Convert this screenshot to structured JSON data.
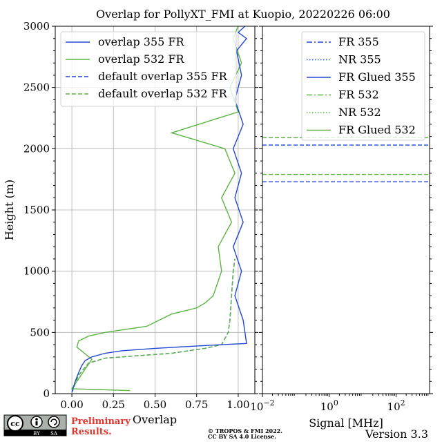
{
  "title": "Overlap for PollyXT_FMI at Kuopio, 20220226 06:00",
  "colors": {
    "blue": "#2047d2",
    "green": "#5ab540"
  },
  "chart_data": [
    {
      "type": "line",
      "xlabel": "Overlap",
      "ylabel": "Height (m)",
      "xlim": [
        -0.1,
        1.1
      ],
      "ylim": [
        0,
        3000
      ],
      "xticks": [
        0.0,
        0.25,
        0.5,
        0.75,
        1.0
      ],
      "xticklabels": [
        "0.00",
        "0.25",
        "0.50",
        "0.75",
        "1.00"
      ],
      "yticks": [
        0,
        500,
        1000,
        1500,
        2000,
        2500,
        3000
      ],
      "yticklabels": [
        "0",
        "500",
        "1000",
        "1500",
        "2000",
        "2500",
        "3000"
      ],
      "grid": true,
      "legend_placement": "top-left",
      "series": [
        {
          "name": "overlap 355 FR",
          "color": "#2047d2",
          "style": "solid",
          "x": [
            0.0,
            0.02,
            0.04,
            0.06,
            0.08,
            0.12,
            0.2,
            0.3,
            0.5,
            0.7,
            0.9,
            1.05,
            1.03,
            0.98,
            1.02,
            0.97,
            1.03,
            0.98,
            1.02,
            0.97,
            1.03,
            0.98,
            1.02,
            0.99,
            1.05,
            1.0,
            1.04
          ],
          "y": [
            10,
            100,
            170,
            230,
            270,
            300,
            330,
            350,
            370,
            385,
            400,
            410,
            600,
            800,
            1000,
            1200,
            1400,
            1600,
            1800,
            2000,
            2200,
            2400,
            2600,
            2800,
            2900,
            2950,
            3000
          ]
        },
        {
          "name": "overlap 532 FR",
          "color": "#5ab540",
          "style": "solid",
          "x": [
            0.35,
            0.0,
            0.08,
            0.12,
            0.03,
            0.04,
            0.1,
            0.2,
            0.45,
            0.6,
            0.75,
            0.8,
            0.85,
            0.9,
            0.88,
            0.96,
            0.9,
            0.98,
            0.92,
            0.6,
            1.0,
            0.95,
            1.02,
            0.97,
            1.0
          ],
          "y": [
            25,
            40,
            200,
            280,
            380,
            430,
            470,
            500,
            550,
            650,
            700,
            740,
            800,
            1000,
            1200,
            1400,
            1600,
            1800,
            2000,
            2130,
            2300,
            2500,
            2700,
            2900,
            3000
          ]
        },
        {
          "name": "default overlap 355 FR",
          "color": "#2047d2",
          "style": "dashed",
          "x": [
            0.0,
            0.04,
            0.1,
            0.2,
            0.4,
            0.6,
            0.8,
            0.9,
            0.94,
            0.95,
            0.96,
            0.97,
            0.98
          ],
          "y": [
            10,
            150,
            250,
            290,
            310,
            330,
            370,
            400,
            500,
            600,
            800,
            1000,
            1100
          ]
        },
        {
          "name": "default overlap 532 FR",
          "color": "#5ab540",
          "style": "dashed",
          "x": [
            0.0,
            0.04,
            0.1,
            0.2,
            0.4,
            0.6,
            0.8,
            0.9,
            0.94,
            0.95,
            0.96,
            0.97,
            0.98
          ],
          "y": [
            10,
            150,
            250,
            290,
            310,
            330,
            370,
            400,
            500,
            600,
            800,
            1000,
            1100
          ]
        }
      ]
    },
    {
      "type": "line",
      "xlabel": "Signal [MHz]",
      "xscale": "log",
      "xlim": [
        0.01,
        1000
      ],
      "xticks": [
        0.01,
        1,
        100
      ],
      "ylim": [
        0,
        3000
      ],
      "grid": false,
      "legend_placement": "top-right",
      "series": [
        {
          "name": "FR 355",
          "color": "#2047d2",
          "style": "dashdot"
        },
        {
          "name": "NR 355",
          "color": "#2047d2",
          "style": "dotted"
        },
        {
          "name": "FR Glued 355",
          "color": "#2047d2",
          "style": "solid"
        },
        {
          "name": "FR 532",
          "color": "#5ab540",
          "style": "dashdot"
        },
        {
          "name": "NR 532",
          "color": "#5ab540",
          "style": "dotted"
        },
        {
          "name": "FR Glued 532",
          "color": "#5ab540",
          "style": "solid"
        }
      ],
      "hlines": [
        {
          "y": 2090,
          "color": "#5ab540",
          "style": "dashed"
        },
        {
          "y": 2030,
          "color": "#2047d2",
          "style": "dashed"
        },
        {
          "y": 1790,
          "color": "#5ab540",
          "style": "dashed"
        },
        {
          "y": 1730,
          "color": "#2047d2",
          "style": "dashed"
        }
      ]
    }
  ],
  "footer": {
    "license_badge": [
      "cc",
      "BY",
      "SA"
    ],
    "preliminary": [
      "Preliminary",
      "Results."
    ],
    "copyright": [
      "© TROPOS & FMI 2022.",
      "CC BY SA 4.0 License."
    ],
    "version": "Version 3.3"
  }
}
